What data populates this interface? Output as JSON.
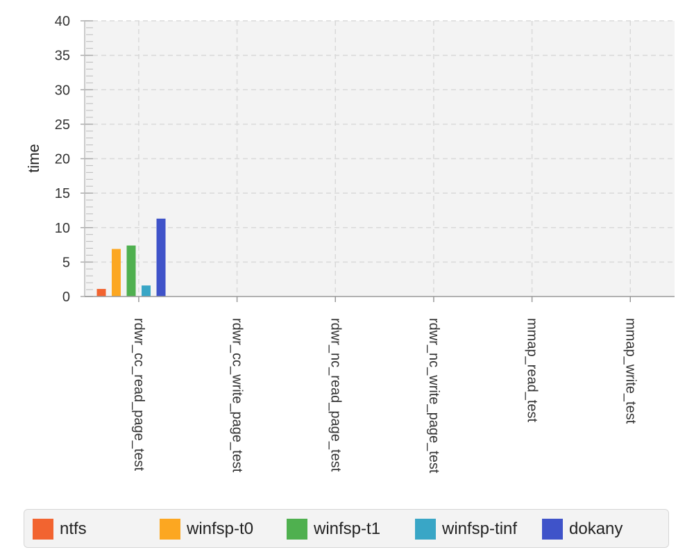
{
  "chart_data": {
    "type": "bar",
    "ylabel": "time",
    "xlabel": "",
    "ylim": [
      0,
      40
    ],
    "yticks": [
      "0",
      "5",
      "10",
      "15",
      "20",
      "25",
      "30",
      "35",
      "40"
    ],
    "grid": true,
    "legend_position": "bottom",
    "categories": [
      "rdwr_cc_read_page_test",
      "rdwr_cc_write_page_test",
      "rdwr_nc_read_page_test",
      "rdwr_nc_write_page_test",
      "mmap_read_test",
      "mmap_write_test"
    ],
    "series": [
      {
        "name": "ntfs",
        "color": "#f26430",
        "values": [
          1.1,
          0,
          0,
          0,
          0,
          0
        ]
      },
      {
        "name": "winfsp-t0",
        "color": "#fca721",
        "values": [
          6.9,
          0,
          0,
          0,
          0,
          0
        ]
      },
      {
        "name": "winfsp-t1",
        "color": "#4fb04f",
        "values": [
          7.4,
          0,
          0,
          0,
          0,
          0
        ]
      },
      {
        "name": "winfsp-tinf",
        "color": "#39a6c6",
        "values": [
          1.6,
          0,
          0,
          0,
          0,
          0
        ]
      },
      {
        "name": "dokany",
        "color": "#3f53c9",
        "values": [
          11.3,
          0,
          0,
          0,
          0,
          0
        ]
      }
    ]
  }
}
